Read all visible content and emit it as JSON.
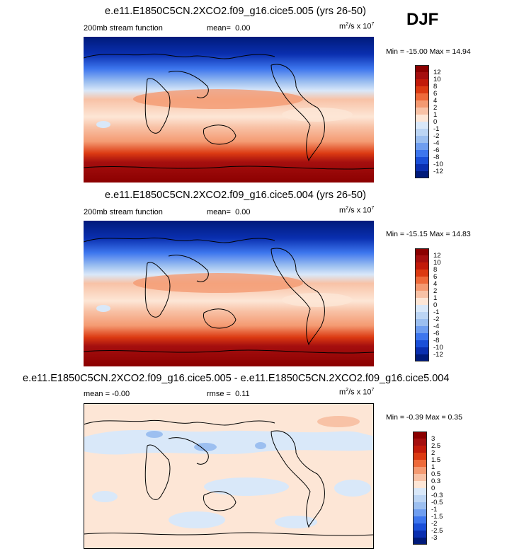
{
  "season": "DJF",
  "panels": [
    {
      "title": "e.e11.E1850C5CN.2XCO2.f09_g16.cice5.005 (yrs 26-50)",
      "left_label": "200mb stream function",
      "stat_label": "mean=",
      "stat_value": "0.00",
      "units_base": "m",
      "units_exp": "2",
      "units_mid": "/s x 10",
      "units_pow": "7",
      "min_text": "Min = -15.00 Max =  14.94",
      "colorbar_ticks": [
        "12",
        "10",
        "8",
        "6",
        "4",
        "2",
        "1",
        "0",
        "-1",
        "-2",
        "-4",
        "-6",
        "-8",
        "-10",
        "-12"
      ]
    },
    {
      "title": "e.e11.E1850C5CN.2XCO2.f09_g16.cice5.004 (yrs 26-50)",
      "left_label": "200mb stream function",
      "stat_label": "mean=",
      "stat_value": "0.00",
      "units_base": "m",
      "units_exp": "2",
      "units_mid": "/s x 10",
      "units_pow": "7",
      "min_text": "Min = -15.15 Max =  14.83",
      "colorbar_ticks": [
        "12",
        "10",
        "8",
        "6",
        "4",
        "2",
        "1",
        "0",
        "-1",
        "-2",
        "-4",
        "-6",
        "-8",
        "-10",
        "-12"
      ]
    },
    {
      "title": "e.e11.E1850C5CN.2XCO2.f09_g16.cice5.005 - e.e11.E1850C5CN.2XCO2.f09_g16.cice5.004",
      "left_label": "mean = -0.00",
      "stat_label": "rmse =",
      "stat_value": "0.11",
      "units_base": "m",
      "units_exp": "2",
      "units_mid": "/s x 10",
      "units_pow": "7",
      "min_text": "Min = -0.39 Max =  0.35",
      "colorbar_ticks": [
        "3",
        "2.5",
        "2",
        "1.5",
        "1",
        "0.5",
        "0.3",
        "0",
        "-0.3",
        "-0.5",
        "-1",
        "-1.5",
        "-2",
        "-2.5",
        "-3"
      ]
    }
  ],
  "colors": {
    "main_scale": [
      "#8b0000",
      "#a50f0f",
      "#c21a0a",
      "#dc3a12",
      "#ee6a3a",
      "#f49a72",
      "#f8c2a6",
      "#fde6d6",
      "#d9e8f9",
      "#bcd5f4",
      "#9cbff0",
      "#6f9ef0",
      "#3d76ee",
      "#1a4fd8",
      "#0a2fb0",
      "#001a7a"
    ]
  }
}
